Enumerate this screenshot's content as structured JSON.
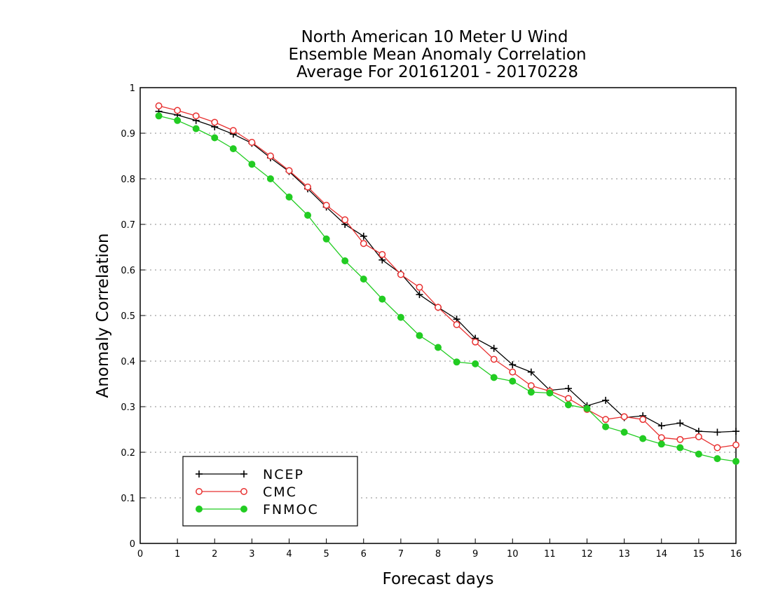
{
  "chart_data": {
    "type": "line",
    "title": [
      "North American 10 Meter U Wind",
      "Ensemble Mean Anomaly Correlation",
      "Average For 20161201 - 20170228"
    ],
    "xlabel": "Forecast days",
    "ylabel": "Anomaly Correlation",
    "xlim": [
      0,
      16
    ],
    "ylim": [
      0,
      1
    ],
    "xticks": [
      "0",
      "1",
      "2",
      "3",
      "4",
      "5",
      "6",
      "7",
      "8",
      "9",
      "10",
      "11",
      "12",
      "13",
      "14",
      "15",
      "16"
    ],
    "yticks": [
      "0",
      "0.1",
      "0.2",
      "0.3",
      "0.4",
      "0.5",
      "0.6",
      "0.7",
      "0.8",
      "0.9",
      "1"
    ],
    "grid": "horizontal dotted",
    "legend_position": "bottom-left",
    "x": [
      0.5,
      1,
      1.5,
      2,
      2.5,
      3,
      3.5,
      4,
      4.5,
      5,
      5.5,
      6,
      6.5,
      7,
      7.5,
      8,
      8.5,
      9,
      9.5,
      10,
      10.5,
      11,
      11.5,
      12,
      12.5,
      13,
      13.5,
      14,
      14.5,
      15,
      15.5,
      16
    ],
    "series": [
      {
        "name": "NCEP",
        "color": "#000000",
        "marker": "plus",
        "values": [
          0.948,
          0.94,
          0.928,
          0.914,
          0.898,
          0.878,
          0.846,
          0.816,
          0.778,
          0.738,
          0.7,
          0.674,
          0.622,
          0.592,
          0.546,
          0.518,
          0.492,
          0.45,
          0.428,
          0.392,
          0.376,
          0.336,
          0.34,
          0.302,
          0.314,
          0.276,
          0.28,
          0.258,
          0.264,
          0.246,
          0.244,
          0.246
        ]
      },
      {
        "name": "CMC",
        "color": "#e83030",
        "marker": "open-circle",
        "values": [
          0.96,
          0.95,
          0.938,
          0.924,
          0.906,
          0.88,
          0.85,
          0.818,
          0.782,
          0.742,
          0.71,
          0.658,
          0.634,
          0.59,
          0.562,
          0.518,
          0.48,
          0.442,
          0.404,
          0.376,
          0.346,
          0.334,
          0.318,
          0.294,
          0.272,
          0.278,
          0.272,
          0.232,
          0.228,
          0.234,
          0.21,
          0.216
        ]
      },
      {
        "name": "FNMOC",
        "color": "#22cc22",
        "marker": "filled-circle",
        "values": [
          0.938,
          0.928,
          0.91,
          0.89,
          0.866,
          0.832,
          0.8,
          0.76,
          0.72,
          0.668,
          0.62,
          0.58,
          0.536,
          0.496,
          0.456,
          0.43,
          0.398,
          0.394,
          0.364,
          0.356,
          0.332,
          0.33,
          0.304,
          0.296,
          0.256,
          0.244,
          0.23,
          0.218,
          0.21,
          0.196,
          0.186,
          0.18
        ]
      }
    ]
  }
}
